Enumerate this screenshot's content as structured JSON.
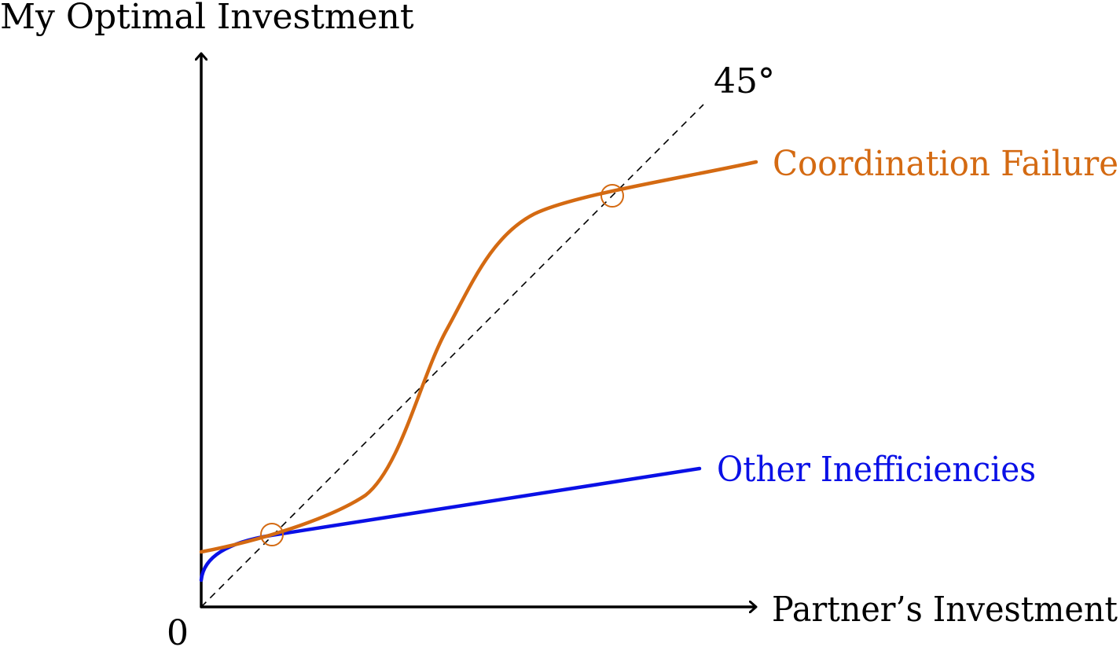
{
  "labels": {
    "y_axis": "My Optimal Investment",
    "x_axis": "Partner’s Investment",
    "origin": "0",
    "diagonal": "45°",
    "coordination_failure": "Coordination Failure",
    "other_inefficiencies": "Other Inefficiencies"
  },
  "colors": {
    "coordination_failure": "#d46a12",
    "other_inefficiencies": "#0a10e6",
    "axes": "#000000"
  }
}
